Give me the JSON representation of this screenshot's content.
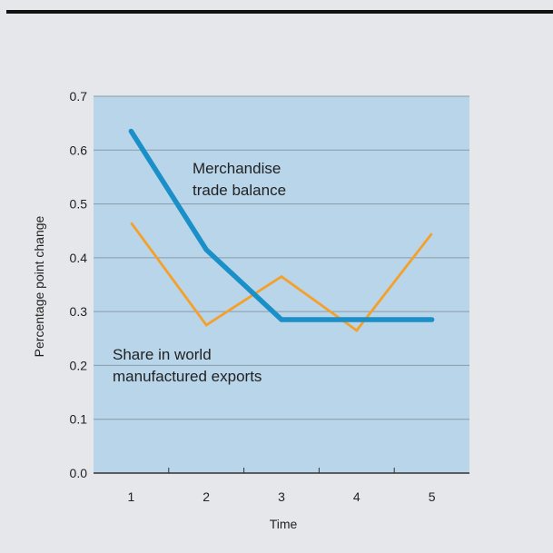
{
  "chart_data": {
    "type": "line",
    "title": "",
    "xlabel": "Time",
    "ylabel": "Percentage point change",
    "x": [
      1,
      2,
      3,
      4,
      5
    ],
    "xlim": [
      0.5,
      5.5
    ],
    "ylim": [
      0,
      0.7
    ],
    "xticks": [
      "1",
      "2",
      "3",
      "4",
      "5"
    ],
    "yticks": [
      "0.0",
      "0.1",
      "0.2",
      "0.3",
      "0.4",
      "0.5",
      "0.6",
      "0.7"
    ],
    "grid": true,
    "legend": "none",
    "series": [
      {
        "name": "Merchandise trade balance",
        "values": [
          0.635,
          0.415,
          0.285,
          0.285,
          0.285
        ],
        "color": "#1a8fc8"
      },
      {
        "name": "Share in world manufactured exports",
        "values": [
          0.465,
          0.275,
          0.365,
          0.265,
          0.445
        ],
        "color": "#f5a02a"
      }
    ],
    "annotations": [
      {
        "lines": [
          "Merchandise",
          "trade balance"
        ],
        "series": 0
      },
      {
        "lines": [
          "Share in world",
          "manufactured exports"
        ],
        "series": 1
      }
    ],
    "colors": {
      "plot_background": "#b8d5ea",
      "gridline": "#8a9aa8",
      "page_background": "#e6e7ea"
    }
  }
}
